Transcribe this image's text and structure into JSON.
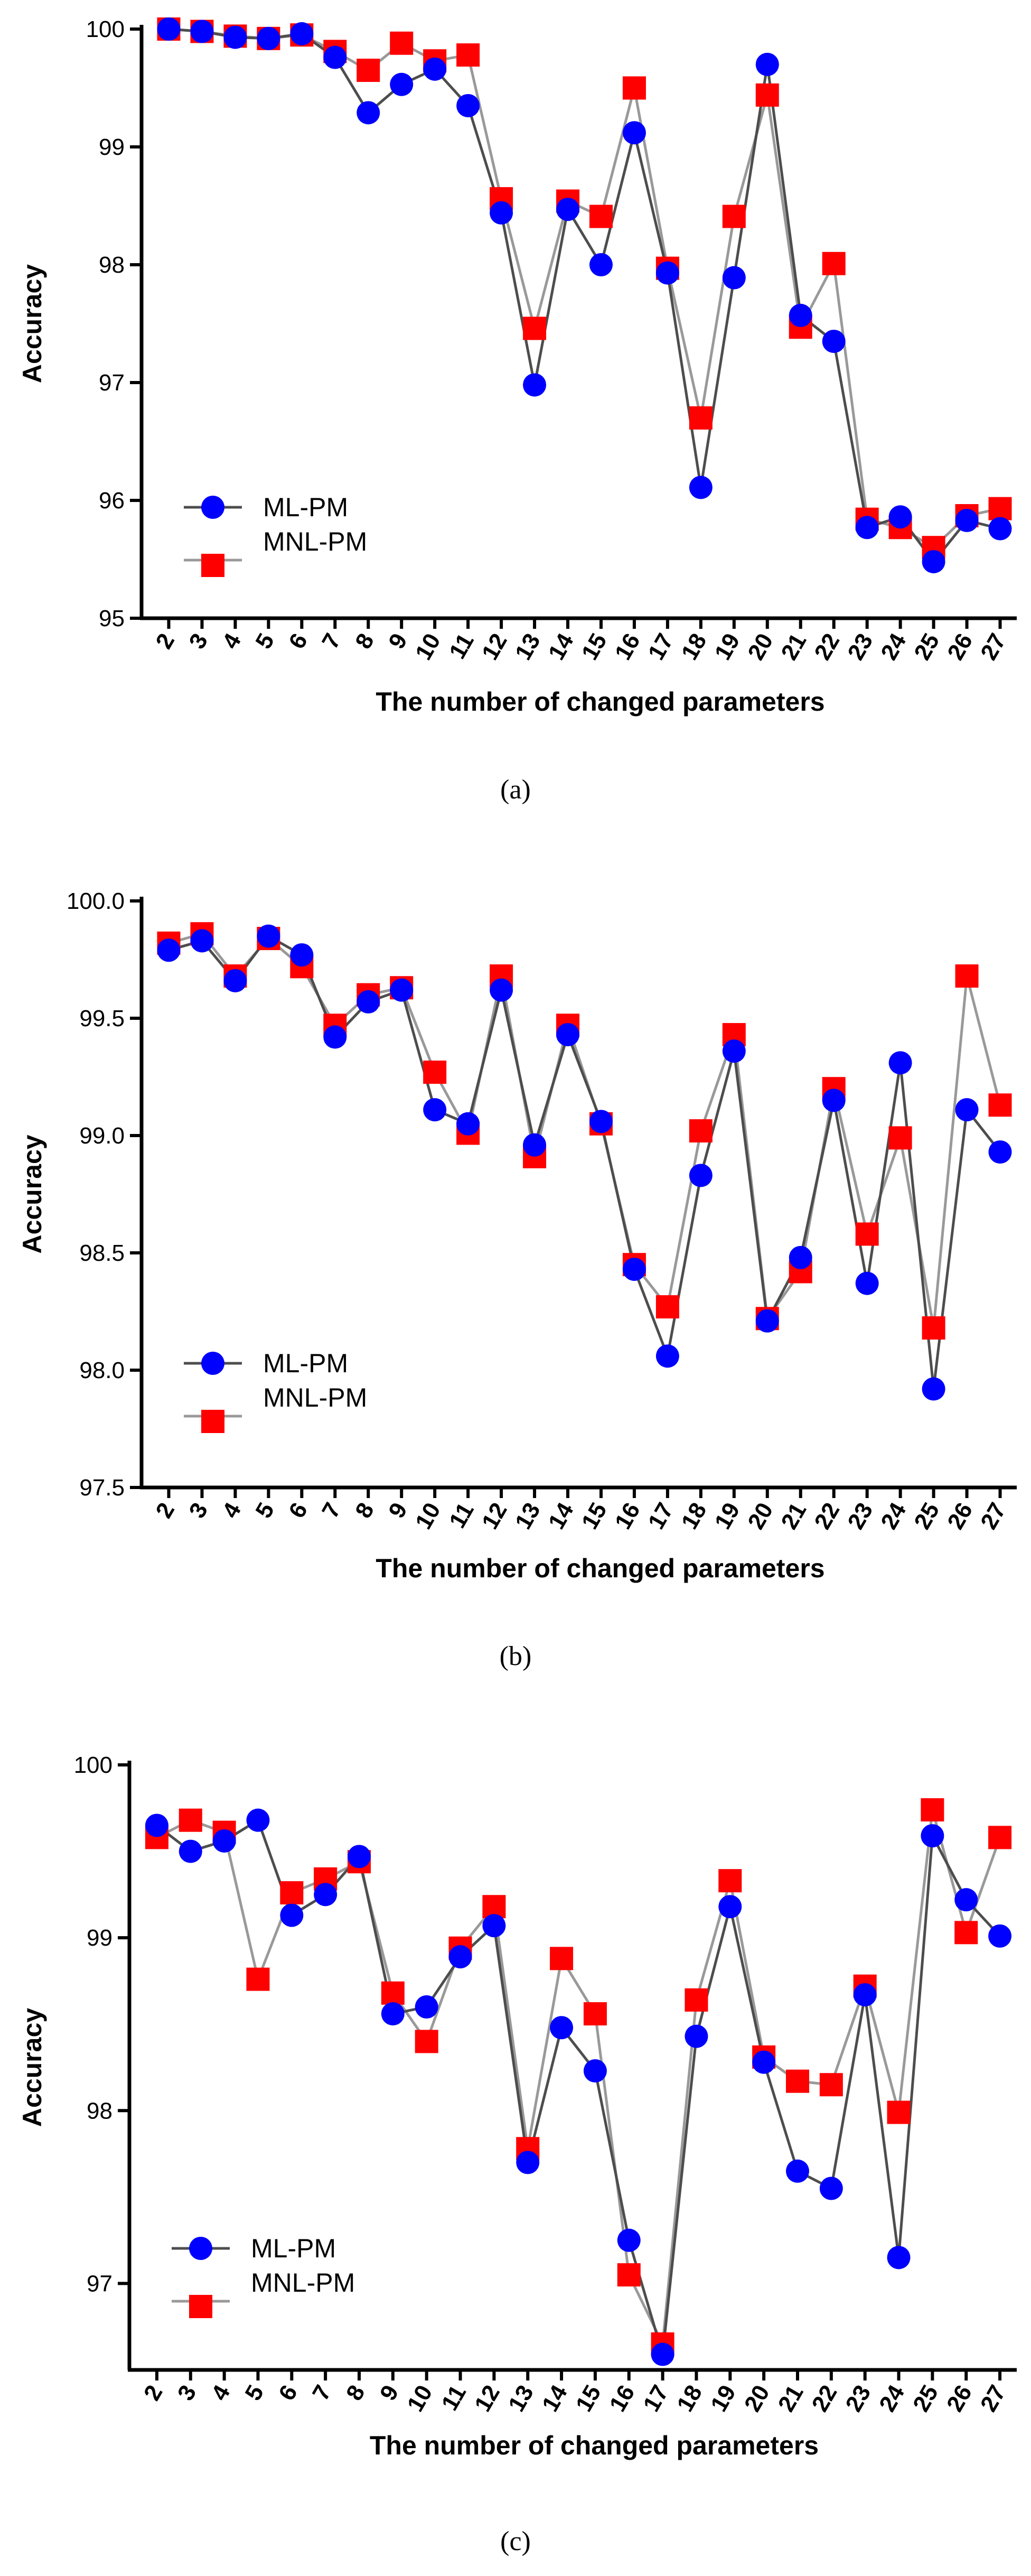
{
  "figure": {
    "captions": [
      "(a)",
      "(b)",
      "(c)"
    ]
  },
  "colors": {
    "ml_marker": "#0000ff",
    "mnl_marker": "#ff0000",
    "ml_line": "#4d4d4d",
    "mnl_line": "#999999",
    "axis": "#000000"
  },
  "chart_data": [
    {
      "type": "line",
      "panel": "(a)",
      "title": "",
      "xlabel": "The number of changed parameters",
      "ylabel": "Accuracy",
      "ylim": [
        95,
        100
      ],
      "yticks": [
        "95",
        "96",
        "97",
        "98",
        "99",
        "100"
      ],
      "legend_position": "bottom-left",
      "categories": [
        "2",
        "3",
        "4",
        "5",
        "6",
        "7",
        "8",
        "9",
        "10",
        "11",
        "12",
        "13",
        "14",
        "15",
        "16",
        "17",
        "18",
        "19",
        "20",
        "21",
        "22",
        "23",
        "24",
        "25",
        "26",
        "27"
      ],
      "series": [
        {
          "name": "ML-PM",
          "marker": "circle",
          "values": [
            100.0,
            99.98,
            99.93,
            99.92,
            99.96,
            99.76,
            99.29,
            99.53,
            99.66,
            99.35,
            98.44,
            96.98,
            98.47,
            98.0,
            99.12,
            97.93,
            96.11,
            97.89,
            99.7,
            97.57,
            97.35,
            95.77,
            95.86,
            95.48,
            95.83,
            95.76
          ]
        },
        {
          "name": "MNL-PM",
          "marker": "square",
          "values": [
            100.0,
            99.98,
            99.94,
            99.92,
            99.95,
            99.81,
            99.65,
            99.88,
            99.73,
            99.78,
            98.56,
            97.46,
            98.54,
            98.41,
            99.5,
            97.97,
            96.7,
            98.41,
            99.44,
            97.47,
            98.01,
            95.84,
            95.77,
            95.6,
            95.87,
            95.93
          ]
        }
      ]
    },
    {
      "type": "line",
      "panel": "(b)",
      "title": "",
      "xlabel": "The number of changed parameters",
      "ylabel": "Accuracy",
      "ylim": [
        97.5,
        100.0
      ],
      "yticks": [
        "97.5",
        "98.0",
        "98.5",
        "99.0",
        "99.5",
        "100.0"
      ],
      "legend_position": "bottom-left",
      "categories": [
        "2",
        "3",
        "4",
        "5",
        "6",
        "7",
        "8",
        "9",
        "10",
        "11",
        "12",
        "13",
        "14",
        "15",
        "16",
        "17",
        "18",
        "19",
        "20",
        "21",
        "22",
        "23",
        "24",
        "25",
        "26",
        "27"
      ],
      "series": [
        {
          "name": "ML-PM",
          "marker": "circle",
          "values": [
            99.79,
            99.83,
            99.66,
            99.85,
            99.77,
            99.42,
            99.57,
            99.62,
            99.11,
            99.05,
            99.62,
            98.96,
            99.43,
            99.06,
            98.43,
            98.06,
            98.83,
            99.36,
            98.21,
            98.48,
            99.15,
            98.37,
            99.31,
            97.92,
            99.11,
            98.93
          ]
        },
        {
          "name": "MNL-PM",
          "marker": "square",
          "values": [
            99.82,
            99.86,
            99.68,
            99.84,
            99.72,
            99.47,
            99.6,
            99.63,
            99.27,
            99.01,
            99.68,
            98.91,
            99.47,
            99.05,
            98.45,
            98.27,
            99.02,
            99.43,
            98.22,
            98.42,
            99.2,
            98.58,
            98.99,
            98.18,
            99.68,
            99.13
          ]
        }
      ]
    },
    {
      "type": "line",
      "panel": "(c)",
      "title": "",
      "xlabel": "The number of changed parameters",
      "ylabel": "Accuracy",
      "ylim": [
        96.5,
        100
      ],
      "yticks": [
        "97",
        "98",
        "99",
        "100"
      ],
      "legend_position": "bottom-left",
      "categories": [
        "2",
        "3",
        "4",
        "5",
        "6",
        "7",
        "8",
        "9",
        "10",
        "11",
        "12",
        "13",
        "14",
        "15",
        "16",
        "17",
        "18",
        "19",
        "20",
        "21",
        "22",
        "23",
        "24",
        "25",
        "26",
        "27"
      ],
      "series": [
        {
          "name": "ML-PM",
          "marker": "circle",
          "values": [
            99.65,
            99.5,
            99.56,
            99.68,
            99.13,
            99.25,
            99.47,
            98.56,
            98.6,
            98.89,
            99.07,
            97.7,
            98.48,
            98.23,
            97.25,
            96.59,
            98.43,
            99.18,
            98.28,
            97.65,
            97.55,
            98.67,
            97.15,
            99.59,
            99.22,
            99.01
          ]
        },
        {
          "name": "MNL-PM",
          "marker": "square",
          "values": [
            99.58,
            99.68,
            99.61,
            98.76,
            99.26,
            99.34,
            99.44,
            98.68,
            98.4,
            98.94,
            99.18,
            97.78,
            98.88,
            98.56,
            97.05,
            96.65,
            98.64,
            99.33,
            98.31,
            98.17,
            98.15,
            98.72,
            97.99,
            99.74,
            99.03,
            99.58
          ]
        }
      ]
    }
  ]
}
